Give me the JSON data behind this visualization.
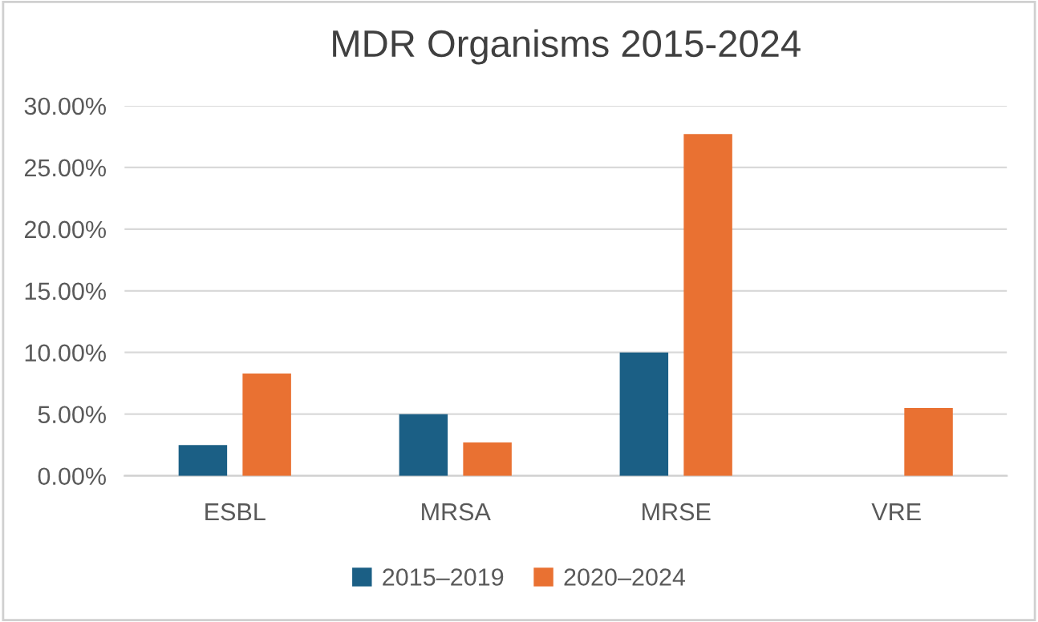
{
  "chart_data": {
    "type": "bar",
    "title": "MDR Organisms 2015-2024",
    "categories": [
      "ESBL",
      "MRSA",
      "MRSE",
      "VRE"
    ],
    "series": [
      {
        "name": "2015–2019",
        "color": "#1b5f85",
        "values": [
          2.5,
          5.0,
          10.0,
          0
        ]
      },
      {
        "name": "2020–2024",
        "color": "#e97132",
        "values": [
          8.3,
          2.7,
          27.7,
          5.5
        ]
      }
    ],
    "ylim": [
      0,
      30
    ],
    "yticks": [
      {
        "value": 0,
        "label": "0.00%"
      },
      {
        "value": 5,
        "label": "5.00%"
      },
      {
        "value": 10,
        "label": "10.00%"
      },
      {
        "value": 15,
        "label": "15.00%"
      },
      {
        "value": 20,
        "label": "20.00%"
      },
      {
        "value": 25,
        "label": "25.00%"
      },
      {
        "value": 30,
        "label": "30.00%"
      }
    ],
    "grid": "y",
    "legend": "bottom"
  }
}
